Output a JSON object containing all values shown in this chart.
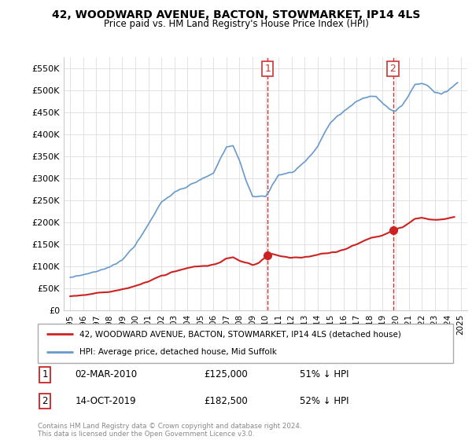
{
  "title": "42, WOODWARD AVENUE, BACTON, STOWMARKET, IP14 4LS",
  "subtitle": "Price paid vs. HM Land Registry's House Price Index (HPI)",
  "legend_line1": "42, WOODWARD AVENUE, BACTON, STOWMARKET, IP14 4LS (detached house)",
  "legend_line2": "HPI: Average price, detached house, Mid Suffolk",
  "footnote": "Contains HM Land Registry data © Crown copyright and database right 2024.\nThis data is licensed under the Open Government Licence v3.0.",
  "sale1_label": "1",
  "sale1_date": "02-MAR-2010",
  "sale1_price": "£125,000",
  "sale1_hpi": "51% ↓ HPI",
  "sale2_label": "2",
  "sale2_date": "14-OCT-2019",
  "sale2_price": "£182,500",
  "sale2_hpi": "52% ↓ HPI",
  "hpi_color": "#6699cc",
  "sale_color": "#cc2222",
  "vline_color": "#cc3333",
  "marker1_x": 2010.17,
  "marker1_y": 125000,
  "marker2_x": 2019.79,
  "marker2_y": 182500,
  "ylim": [
    0,
    575000
  ],
  "xlim": [
    1994.5,
    2025.5
  ],
  "yticks": [
    0,
    50000,
    100000,
    150000,
    200000,
    250000,
    300000,
    350000,
    400000,
    450000,
    500000,
    550000
  ],
  "xticks": [
    1995,
    1996,
    1997,
    1998,
    1999,
    2000,
    2001,
    2002,
    2003,
    2004,
    2005,
    2006,
    2007,
    2008,
    2009,
    2010,
    2011,
    2012,
    2013,
    2014,
    2015,
    2016,
    2017,
    2018,
    2019,
    2020,
    2021,
    2022,
    2023,
    2024,
    2025
  ],
  "hpi_knots_x": [
    1995,
    1996,
    1997,
    1998,
    1999,
    2000,
    2001,
    2002,
    2003,
    2004,
    2005,
    2006,
    2007,
    2007.5,
    2008,
    2008.5,
    2009,
    2009.5,
    2010,
    2011,
    2012,
    2013,
    2014,
    2015,
    2016,
    2017,
    2017.5,
    2018,
    2018.5,
    2019,
    2019.5,
    2020,
    2020.5,
    2021,
    2021.5,
    2022,
    2022.5,
    2023,
    2023.5,
    2024,
    2024.5,
    2024.75
  ],
  "hpi_knots_y": [
    75000,
    80000,
    88000,
    98000,
    115000,
    148000,
    195000,
    245000,
    268000,
    282000,
    296000,
    312000,
    370000,
    375000,
    340000,
    295000,
    258000,
    260000,
    258000,
    308000,
    312000,
    336000,
    372000,
    428000,
    452000,
    475000,
    482000,
    486000,
    486000,
    470000,
    458000,
    453000,
    465000,
    490000,
    514000,
    516000,
    510000,
    494000,
    491000,
    498000,
    512000,
    516000
  ],
  "sale_knots_x": [
    1995,
    1995.5,
    1996,
    1997,
    1998,
    1999,
    2000,
    2001,
    2002,
    2003,
    2004,
    2005,
    2005.5,
    2006,
    2006.5,
    2007,
    2007.5,
    2008,
    2008.5,
    2009,
    2009.5,
    2010,
    2010.17,
    2010.5,
    2011,
    2012,
    2013,
    2014,
    2015,
    2016,
    2017,
    2018,
    2019,
    2019.79,
    2020,
    2020.5,
    2021,
    2021.5,
    2022,
    2022.5,
    2023,
    2023.5,
    2024,
    2024.5
  ],
  "sale_knots_y": [
    32000,
    33000,
    35000,
    38000,
    42000,
    48000,
    55000,
    65000,
    78000,
    88000,
    96000,
    100000,
    101000,
    104000,
    108000,
    118000,
    120000,
    112000,
    108000,
    103000,
    107000,
    120000,
    125000,
    128000,
    124000,
    119000,
    121000,
    126000,
    131000,
    137000,
    150000,
    163000,
    170000,
    182500,
    185000,
    188000,
    198000,
    207000,
    210000,
    207000,
    205000,
    206000,
    209000,
    212000
  ]
}
